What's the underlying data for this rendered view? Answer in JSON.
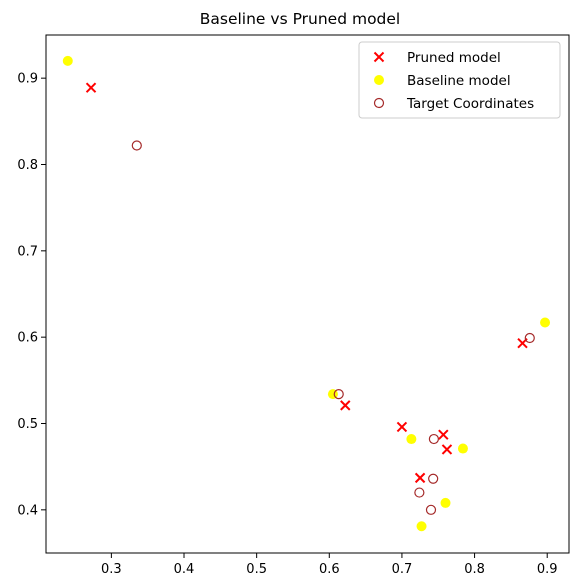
{
  "chart_data": {
    "type": "scatter",
    "title": "Baseline vs Pruned model",
    "xlabel": "",
    "ylabel": "",
    "xlim": [
      0.21,
      0.93
    ],
    "ylim": [
      0.35,
      0.95
    ],
    "x_ticks": [
      0.3,
      0.4,
      0.5,
      0.6,
      0.7,
      0.8,
      0.9
    ],
    "y_ticks": [
      0.4,
      0.5,
      0.6,
      0.7,
      0.8,
      0.9
    ],
    "x_tick_labels": [
      "0.3",
      "0.4",
      "0.5",
      "0.6",
      "0.7",
      "0.8",
      "0.9"
    ],
    "y_tick_labels": [
      "0.4",
      "0.5",
      "0.6",
      "0.7",
      "0.8",
      "0.9"
    ],
    "grid": false,
    "legend_position": "top-right",
    "series": [
      {
        "name": "Pruned model",
        "marker": "x",
        "color": "#ff0000",
        "points": [
          [
            0.272,
            0.889
          ],
          [
            0.622,
            0.521
          ],
          [
            0.7,
            0.496
          ],
          [
            0.757,
            0.487
          ],
          [
            0.762,
            0.47
          ],
          [
            0.725,
            0.437
          ],
          [
            0.866,
            0.593
          ]
        ]
      },
      {
        "name": "Baseline model",
        "marker": "filled-circle",
        "color": "#ffff00",
        "points": [
          [
            0.24,
            0.92
          ],
          [
            0.605,
            0.534
          ],
          [
            0.713,
            0.482
          ],
          [
            0.784,
            0.471
          ],
          [
            0.76,
            0.408
          ],
          [
            0.727,
            0.381
          ],
          [
            0.897,
            0.617
          ]
        ]
      },
      {
        "name": "Target Coordinates",
        "marker": "hollow-circle",
        "color": "#a52a2a",
        "points": [
          [
            0.335,
            0.822
          ],
          [
            0.613,
            0.534
          ],
          [
            0.744,
            0.482
          ],
          [
            0.743,
            0.436
          ],
          [
            0.724,
            0.42
          ],
          [
            0.74,
            0.4
          ],
          [
            0.876,
            0.599
          ]
        ]
      }
    ]
  }
}
